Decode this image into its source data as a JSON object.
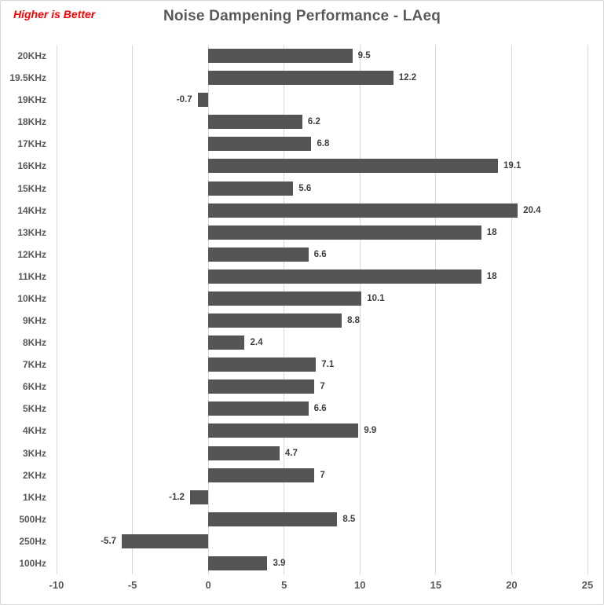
{
  "annotation": {
    "text": "Higher is Better",
    "color": "#fe0000"
  },
  "title": "Noise Dampening Performance - LAeq",
  "chart_data": {
    "type": "bar",
    "orientation": "horizontal",
    "title": "Noise Dampening Performance - LAeq",
    "xlabel": "",
    "ylabel": "",
    "legend": "none",
    "grid": "vertical",
    "categories_top_to_bottom": [
      "20KHz",
      "19.5KHz",
      "19KHz",
      "18KHz",
      "17KHz",
      "16KHz",
      "15KHz",
      "14KHz",
      "13KHz",
      "12KHz",
      "11KHz",
      "10KHz",
      "9KHz",
      "8KHz",
      "7KHz",
      "6KHz",
      "5KHz",
      "4KHz",
      "3KHz",
      "2KHz",
      "1KHz",
      "500Hz",
      "250Hz",
      "100Hz"
    ],
    "values": [
      9.5,
      12.2,
      -0.7,
      6.2,
      6.8,
      19.1,
      5.6,
      20.4,
      18,
      6.6,
      18,
      10.1,
      8.8,
      2.4,
      7.1,
      7,
      6.6,
      9.9,
      4.7,
      7,
      -1.2,
      8.5,
      -5.7,
      3.9
    ],
    "value_labels": [
      "9.5",
      "12.2",
      "-0.7",
      "6.2",
      "6.8",
      "19.1",
      "5.6",
      "20.4",
      "18",
      "6.6",
      "18",
      "10.1",
      "8.8",
      "2.4",
      "7.1",
      "7",
      "6.6",
      "9.9",
      "4.7",
      "7",
      "-1.2",
      "8.5",
      "-5.7",
      "3.9"
    ],
    "x_ticks": [
      -10,
      -5,
      0,
      5,
      10,
      15,
      20,
      25
    ],
    "xlim": [
      -10,
      25
    ],
    "bar_color": "#545454",
    "gridline_color": "#d9d9d9",
    "title_color": "#595959",
    "axis_label_color": "#595959",
    "value_label_color": "#3f3f3f"
  }
}
